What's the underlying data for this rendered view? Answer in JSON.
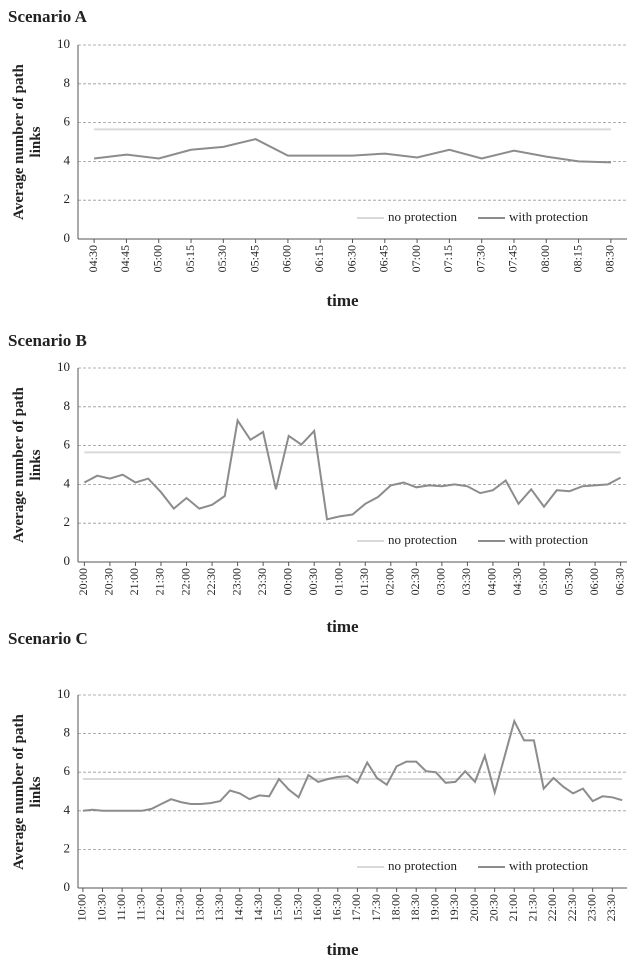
{
  "chart_data": [
    {
      "type": "line",
      "title": "Scenario A",
      "x_label": "time",
      "y_label": "Average number of path links",
      "categories": [
        "04:30",
        "04:45",
        "05:00",
        "05:15",
        "05:30",
        "05:45",
        "06:00",
        "06:15",
        "06:30",
        "06:45",
        "07:00",
        "07:15",
        "07:30",
        "07:45",
        "08:00",
        "08:15",
        "08:30"
      ],
      "series": [
        {
          "name": "no protection",
          "color": "#d9d9d9",
          "values": [
            5.65,
            5.65,
            5.65,
            5.65,
            5.65,
            5.65,
            5.65,
            5.65,
            5.65,
            5.65,
            5.65,
            5.65,
            5.65,
            5.65,
            5.65,
            5.65,
            5.65
          ]
        },
        {
          "name": "with protection",
          "color": "#8c8c8c",
          "values": [
            4.15,
            4.35,
            4.15,
            4.6,
            4.75,
            5.15,
            4.3,
            4.3,
            4.3,
            4.4,
            4.2,
            4.6,
            4.15,
            4.55,
            4.25,
            4.0,
            3.95
          ]
        }
      ],
      "ylim": [
        0,
        10
      ],
      "yticks": [
        0,
        2,
        4,
        6,
        8,
        10
      ],
      "grid": true,
      "legend": "lower right"
    },
    {
      "type": "line",
      "title": "Scenario B",
      "x_label": "time",
      "y_label": "Average number of path links",
      "categories": [
        "20:00",
        null,
        "20:30",
        null,
        "21:00",
        null,
        "21:30",
        null,
        "22:00",
        null,
        "22:30",
        null,
        "23:00",
        null,
        "23:30",
        null,
        "00:00",
        null,
        "00:30",
        null,
        "01:00",
        null,
        "01:30",
        null,
        "02:00",
        null,
        "02:30",
        null,
        "03:00",
        null,
        "03:30",
        null,
        "04:00",
        null,
        "04:30",
        null,
        "05:00",
        null,
        "05:30",
        null,
        "06:00",
        null,
        "06:30"
      ],
      "series": [
        {
          "name": "no protection",
          "color": "#d9d9d9",
          "values": [
            5.65,
            5.65,
            5.65,
            5.65,
            5.65,
            5.65,
            5.65,
            5.65,
            5.65,
            5.65,
            5.65,
            5.65,
            5.65,
            5.65,
            5.65,
            5.65,
            5.65,
            5.65,
            5.65,
            5.65,
            5.65,
            5.65,
            5.65,
            5.65,
            5.65,
            5.65,
            5.65,
            5.65,
            5.65,
            5.65,
            5.65,
            5.65,
            5.65,
            5.65,
            5.65,
            5.65,
            5.65,
            5.65,
            5.65,
            5.65,
            5.65,
            5.65,
            5.65
          ]
        },
        {
          "name": "with protection",
          "color": "#8c8c8c",
          "values": [
            4.1,
            4.45,
            4.3,
            4.5,
            4.1,
            4.3,
            3.6,
            2.75,
            3.3,
            2.75,
            2.95,
            3.4,
            7.3,
            6.3,
            6.7,
            3.75,
            6.5,
            6.05,
            6.75,
            2.2,
            2.35,
            2.45,
            3.0,
            3.35,
            3.95,
            4.1,
            3.85,
            3.95,
            3.9,
            4.0,
            3.9,
            3.55,
            3.7,
            4.2,
            3.0,
            3.75,
            2.85,
            3.7,
            3.65,
            3.9,
            3.95,
            4.0,
            4.35
          ]
        }
      ],
      "ylim": [
        0,
        10
      ],
      "yticks": [
        0,
        2,
        4,
        6,
        8,
        10
      ],
      "grid": true,
      "legend": "lower right"
    },
    {
      "type": "line",
      "title": "Scenario C",
      "x_label": "time",
      "y_label": "Average number of path links",
      "categories": [
        "10:00",
        null,
        "10:30",
        null,
        "11:00",
        null,
        "11:30",
        null,
        "12:00",
        null,
        "12:30",
        null,
        "13:00",
        null,
        "13:30",
        null,
        "14:00",
        null,
        "14:30",
        null,
        "15:00",
        null,
        "15:30",
        null,
        "16:00",
        null,
        "16:30",
        null,
        "17:00",
        null,
        "17:30",
        null,
        "18:00",
        null,
        "18:30",
        null,
        "19:00",
        null,
        "19:30",
        null,
        "20:00",
        null,
        "20:30",
        null,
        "21:00",
        null,
        "21:30",
        null,
        "22:00",
        null,
        "22:30",
        null,
        "23:00",
        null,
        "23:30",
        null
      ],
      "series": [
        {
          "name": "no protection",
          "color": "#d9d9d9",
          "values": [
            5.65,
            5.65,
            5.65,
            5.65,
            5.65,
            5.65,
            5.65,
            5.65,
            5.65,
            5.65,
            5.65,
            5.65,
            5.65,
            5.65,
            5.65,
            5.65,
            5.65,
            5.65,
            5.65,
            5.65,
            5.65,
            5.65,
            5.65,
            5.65,
            5.65,
            5.65,
            5.65,
            5.65,
            5.65,
            5.65,
            5.65,
            5.65,
            5.65,
            5.65,
            5.65,
            5.65,
            5.65,
            5.65,
            5.65,
            5.65,
            5.65,
            5.65,
            5.65,
            5.65,
            5.65,
            5.65,
            5.65,
            5.65,
            5.65,
            5.65,
            5.65,
            5.65,
            5.65,
            5.65,
            5.65,
            5.65
          ]
        },
        {
          "name": "with protection",
          "color": "#8c8c8c",
          "values": [
            4.0,
            4.05,
            4.0,
            4.0,
            4.0,
            4.0,
            4.0,
            4.1,
            4.35,
            4.6,
            4.45,
            4.35,
            4.35,
            4.4,
            4.5,
            5.05,
            4.9,
            4.6,
            4.8,
            4.75,
            5.65,
            5.1,
            4.7,
            5.85,
            5.5,
            5.65,
            5.75,
            5.8,
            5.45,
            6.5,
            5.7,
            5.35,
            6.3,
            6.55,
            6.55,
            6.05,
            6.0,
            5.45,
            5.5,
            6.05,
            5.5,
            6.85,
            4.95,
            6.8,
            8.65,
            7.65,
            7.65,
            5.15,
            5.7,
            5.25,
            4.9,
            5.15,
            4.5,
            4.75,
            4.7,
            4.55
          ]
        }
      ],
      "ylim": [
        0,
        10
      ],
      "yticks": [
        0,
        2,
        4,
        6,
        8,
        10
      ],
      "grid": true,
      "legend": "lower right"
    }
  ]
}
